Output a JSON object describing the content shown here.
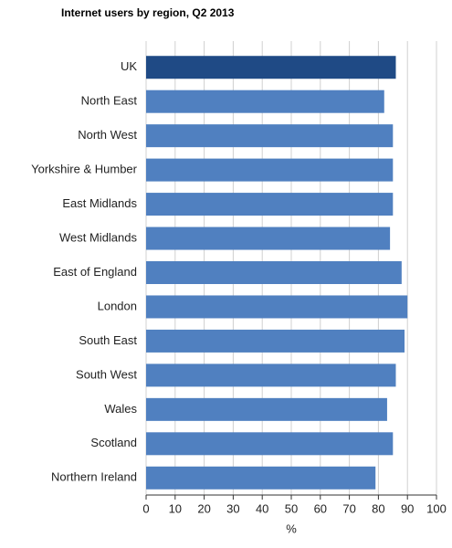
{
  "chart_data": {
    "type": "barh",
    "title": "Internet users by region, Q2 2013",
    "categories": [
      "UK",
      "North East",
      "North West",
      "Yorkshire & Humber",
      "East Midlands",
      "West Midlands",
      "East of England",
      "London",
      "South East",
      "South West",
      "Wales",
      "Scotland",
      "Northern Ireland"
    ],
    "values": [
      86,
      82,
      85,
      85,
      85,
      84,
      88,
      90,
      89,
      86,
      83,
      85,
      79
    ],
    "colors": [
      "#1f4a85",
      "#5080c0",
      "#5080c0",
      "#5080c0",
      "#5080c0",
      "#5080c0",
      "#5080c0",
      "#5080c0",
      "#5080c0",
      "#5080c0",
      "#5080c0",
      "#5080c0",
      "#5080c0"
    ],
    "x_label": "%",
    "xlim": [
      0,
      100
    ],
    "xticks": [
      0,
      10,
      20,
      30,
      40,
      50,
      60,
      70,
      80,
      90,
      100
    ],
    "grid": true
  }
}
